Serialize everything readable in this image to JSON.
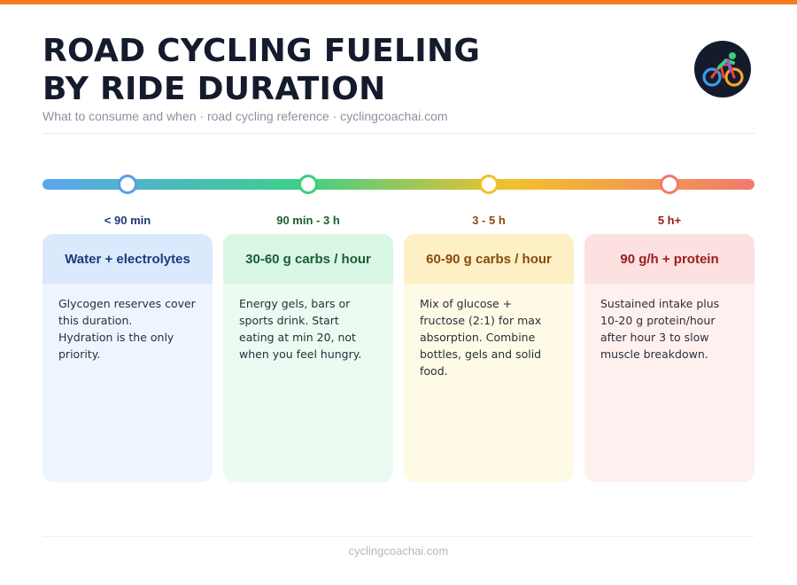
{
  "header": {
    "title_line1": "ROAD CYCLING FUELING",
    "title_line2": "BY RIDE DURATION",
    "subtitle": "What to consume and when · road cycling reference · cyclingcoachai.com"
  },
  "logo_icon": "cyclist-icon",
  "stages": [
    {
      "duration": "< 90 min",
      "heading": "Water + electrolytes",
      "body": [
        "Glycogen reserves cover this duration.",
        "Hydration is the only priority."
      ],
      "accent": "#1e3a7a",
      "dot_color": "#5a9be8",
      "head_bg": "#dbe9fc",
      "body_bg": "#eef5fe"
    },
    {
      "duration": "90 min - 3 h",
      "heading": "30-60 g carbs / hour",
      "body": [
        "Energy gels, bars or sports drink. Start eating at min 20, not when you feel hungry."
      ],
      "accent": "#1b5e33",
      "dot_color": "#3ccf7a",
      "head_bg": "#d8f7e4",
      "body_bg": "#ecfbf2"
    },
    {
      "duration": "3 - 5 h",
      "heading": "60-90 g carbs / hour",
      "body": [
        "Mix of glucose + fructose (2:1) for max absorption. Combine bottles, gels and solid food."
      ],
      "accent": "#8a4a0c",
      "dot_color": "#f3c02a",
      "head_bg": "#fdf0c4",
      "body_bg": "#fefae6"
    },
    {
      "duration": "5 h+",
      "heading": "90 g/h + protein",
      "body": [
        "Sustained intake plus 10-20 g protein/hour after hour 3 to slow muscle breakdown."
      ],
      "accent": "#9a1c1c",
      "dot_color": "#f17a6f",
      "head_bg": "#fde0e0",
      "body_bg": "#fff0f0"
    }
  ],
  "footer": {
    "text": "cyclingcoachai.com"
  }
}
